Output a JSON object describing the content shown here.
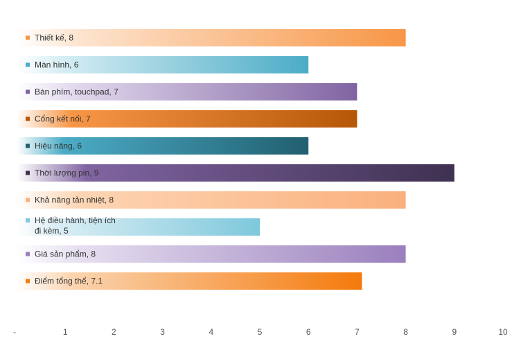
{
  "chart_data": {
    "type": "bar",
    "orientation": "horizontal",
    "xlim": [
      0,
      10
    ],
    "ticks": [
      "-",
      "1",
      "2",
      "3",
      "4",
      "5",
      "6",
      "7",
      "8",
      "9",
      "10"
    ],
    "grid": false,
    "legend": "none",
    "bars": [
      {
        "label": "Thiết kế",
        "value": 8,
        "value_label": "8",
        "color_start": "#fde4cf",
        "color_end": "#f79646"
      },
      {
        "label": "Màn hình",
        "value": 6,
        "value_label": "6",
        "color_start": "#d5edf3",
        "color_end": "#4bacc6"
      },
      {
        "label": "Bàn phím, touchpad",
        "value": 7,
        "value_label": "7",
        "color_start": "#e3daee",
        "color_end": "#8064a2"
      },
      {
        "label": "Cổng kết nối",
        "value": 7,
        "value_label": "7",
        "color_start": "#f79646",
        "color_end": "#b65708"
      },
      {
        "label": "Hiệu năng",
        "value": 6,
        "value_label": "6",
        "color_start": "#4bacc6",
        "color_end": "#215f70"
      },
      {
        "label": "Thời lượng pin",
        "value": 9,
        "value_label": "9",
        "color_start": "#8064a2",
        "color_end": "#3f3151"
      },
      {
        "label": "Khả năng tản nhiệt",
        "value": 8,
        "value_label": "8",
        "color_start": "#fdd5b4",
        "color_end": "#fab07d"
      },
      {
        "label": "Hệ điều hành, tiện ích đi kèm",
        "label_lines": [
          "Hệ điều hành, tiện ích",
          "đi kèm"
        ],
        "value": 5,
        "value_label": "5",
        "color_start": "#dbeef5",
        "color_end": "#7ec8dc"
      },
      {
        "label": "Giá sản phẩm",
        "value": 8,
        "value_label": "8",
        "color_start": "#e6dff0",
        "color_end": "#9a7fbd"
      },
      {
        "label": "Điểm tổng thể",
        "value": 7.1,
        "value_label": "7.1",
        "color_start": "#fbd4b0",
        "color_end": "#f47a0c"
      }
    ]
  }
}
